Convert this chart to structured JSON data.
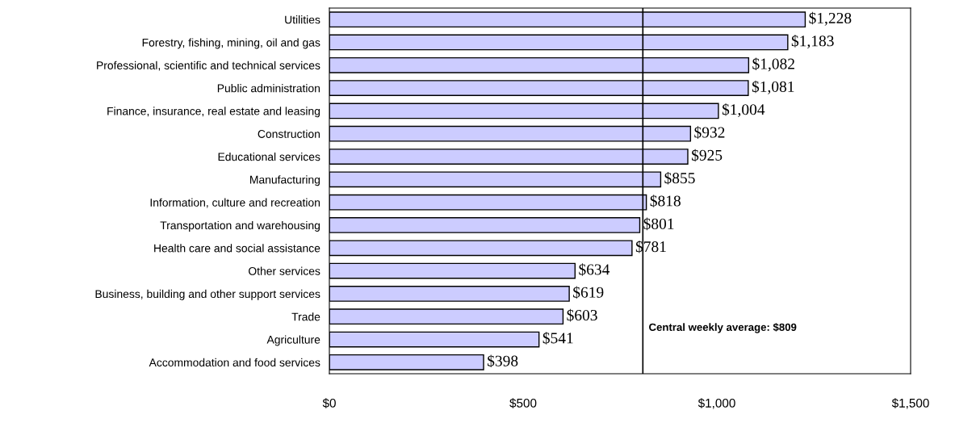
{
  "chart_data": {
    "type": "bar",
    "orientation": "horizontal",
    "categories": [
      "Utilities",
      "Forestry, fishing, mining, oil and gas",
      "Professional, scientific and technical services",
      "Public administration",
      "Finance, insurance, real estate and leasing",
      "Construction",
      "Educational services",
      "Manufacturing",
      "Information, culture and recreation",
      "Transportation and warehousing",
      "Health care and social assistance",
      "Other services",
      "Business, building and other support services",
      "Trade",
      "Agriculture",
      "Accommodation and food services"
    ],
    "values": [
      1228,
      1183,
      1082,
      1081,
      1004,
      932,
      925,
      855,
      818,
      801,
      781,
      634,
      619,
      603,
      541,
      398
    ],
    "value_labels": [
      "$1,228",
      "$1,183",
      "$1,082",
      "$1,081",
      "$1,004",
      "$932",
      "$925",
      "$855",
      "$818",
      "$801",
      "$781",
      "$634",
      "$619",
      "$603",
      "$541",
      "$398"
    ],
    "color": "#ccccff",
    "xlim": [
      0,
      1500
    ],
    "xticks": [
      {
        "value": 0,
        "label": "$0"
      },
      {
        "value": 500,
        "label": "$500"
      },
      {
        "value": 1000,
        "label": "$1,000"
      },
      {
        "value": 1500,
        "label": "$1,500"
      }
    ],
    "ref_lines": [
      {
        "axis": "x",
        "value": 809,
        "label": "Central weekly average: $809",
        "color": "#000000"
      }
    ],
    "grid": false,
    "legend": false
  }
}
